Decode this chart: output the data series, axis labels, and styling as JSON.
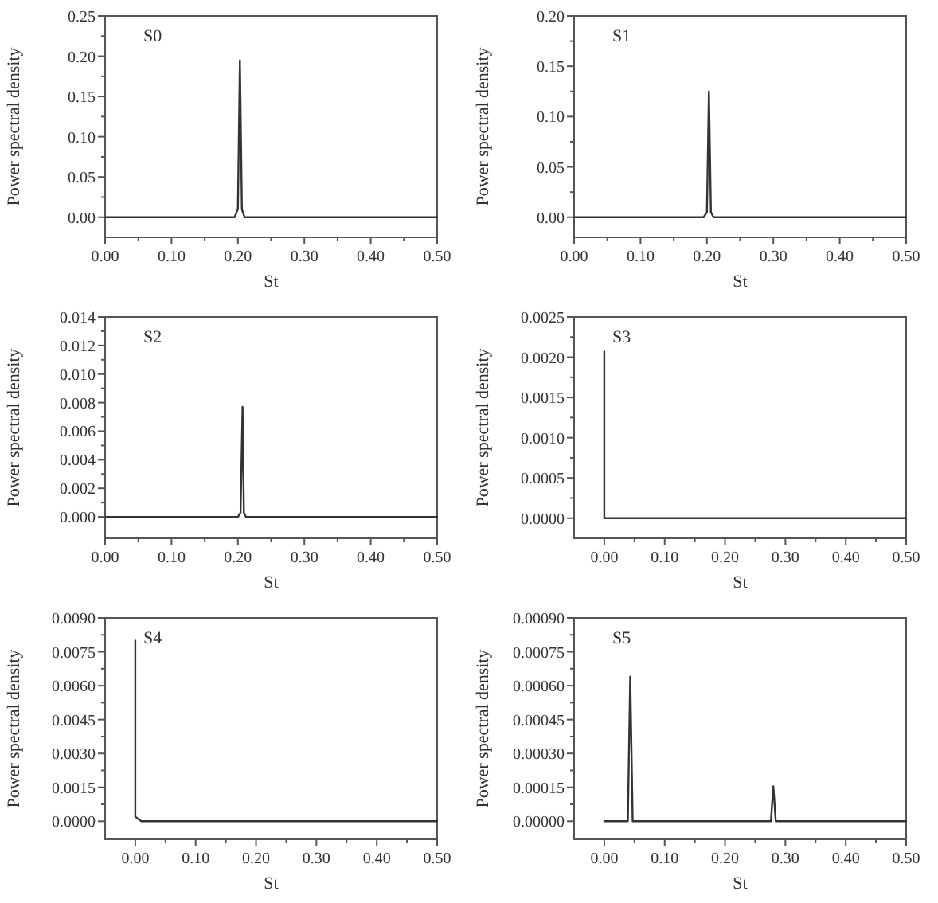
{
  "chart_data": [
    {
      "type": "line",
      "annotations": [
        "S0"
      ],
      "xlabel": "St",
      "ylabel": "Power spectral density",
      "xlim": [
        0,
        0.5
      ],
      "ylim": [
        -0.025,
        0.25
      ],
      "xticks": [
        {
          "value": 0,
          "label": "0.00"
        },
        {
          "value": 0.05,
          "label": null
        },
        {
          "value": 0.1,
          "label": "0.10"
        },
        {
          "value": 0.15,
          "label": null
        },
        {
          "value": 0.2,
          "label": "0.20"
        },
        {
          "value": 0.25,
          "label": null
        },
        {
          "value": 0.3,
          "label": "0.30"
        },
        {
          "value": 0.35,
          "label": null
        },
        {
          "value": 0.4,
          "label": "0.40"
        },
        {
          "value": 0.45,
          "label": null
        },
        {
          "value": 0.5,
          "label": "0.50"
        }
      ],
      "yticks": [
        {
          "value": 0,
          "label": "0.00"
        },
        {
          "value": 0.025,
          "label": null
        },
        {
          "value": 0.05,
          "label": "0.05"
        },
        {
          "value": 0.075,
          "label": null
        },
        {
          "value": 0.1,
          "label": "0.10"
        },
        {
          "value": 0.125,
          "label": null
        },
        {
          "value": 0.15,
          "label": "0.15"
        },
        {
          "value": 0.175,
          "label": null
        },
        {
          "value": 0.2,
          "label": "0.20"
        },
        {
          "value": 0.225,
          "label": null
        },
        {
          "value": 0.25,
          "label": "0.25"
        }
      ],
      "series": [
        {
          "color": "#333333",
          "x": [
            0,
            0.195,
            0.2,
            0.203,
            0.206,
            0.21,
            0.5
          ],
          "values": [
            0,
            0,
            0.01,
            0.195,
            0.01,
            0,
            0
          ]
        }
      ]
    },
    {
      "type": "line",
      "annotations": [
        "S1"
      ],
      "xlabel": "St",
      "ylabel": "Power spectral density",
      "xlim": [
        0,
        0.5
      ],
      "ylim": [
        -0.02,
        0.2
      ],
      "xticks": [
        {
          "value": 0,
          "label": "0.00"
        },
        {
          "value": 0.05,
          "label": null
        },
        {
          "value": 0.1,
          "label": "0.10"
        },
        {
          "value": 0.15,
          "label": null
        },
        {
          "value": 0.2,
          "label": "0.20"
        },
        {
          "value": 0.25,
          "label": null
        },
        {
          "value": 0.3,
          "label": "0.30"
        },
        {
          "value": 0.35,
          "label": null
        },
        {
          "value": 0.4,
          "label": "0.40"
        },
        {
          "value": 0.45,
          "label": null
        },
        {
          "value": 0.5,
          "label": "0.50"
        }
      ],
      "yticks": [
        {
          "value": 0,
          "label": "0.00"
        },
        {
          "value": 0.025,
          "label": null
        },
        {
          "value": 0.05,
          "label": "0.05"
        },
        {
          "value": 0.075,
          "label": null
        },
        {
          "value": 0.1,
          "label": "0.10"
        },
        {
          "value": 0.125,
          "label": null
        },
        {
          "value": 0.15,
          "label": "0.15"
        },
        {
          "value": 0.175,
          "label": null
        },
        {
          "value": 0.2,
          "label": "0.20"
        }
      ],
      "series": [
        {
          "color": "#333333",
          "x": [
            0,
            0.195,
            0.2,
            0.203,
            0.206,
            0.21,
            0.5
          ],
          "values": [
            0,
            0,
            0.005,
            0.125,
            0.005,
            0,
            0
          ]
        }
      ]
    },
    {
      "type": "line",
      "annotations": [
        "S2"
      ],
      "xlabel": "St",
      "ylabel": "Power spectral density",
      "xlim": [
        0,
        0.5
      ],
      "ylim": [
        -0.0015,
        0.014
      ],
      "xticks": [
        {
          "value": 0,
          "label": "0.00"
        },
        {
          "value": 0.05,
          "label": null
        },
        {
          "value": 0.1,
          "label": "0.10"
        },
        {
          "value": 0.15,
          "label": null
        },
        {
          "value": 0.2,
          "label": "0.20"
        },
        {
          "value": 0.25,
          "label": null
        },
        {
          "value": 0.3,
          "label": "0.30"
        },
        {
          "value": 0.35,
          "label": null
        },
        {
          "value": 0.4,
          "label": "0.40"
        },
        {
          "value": 0.45,
          "label": null
        },
        {
          "value": 0.5,
          "label": "0.50"
        }
      ],
      "yticks": [
        {
          "value": 0,
          "label": "0.000"
        },
        {
          "value": 0.001,
          "label": null
        },
        {
          "value": 0.002,
          "label": "0.002"
        },
        {
          "value": 0.003,
          "label": null
        },
        {
          "value": 0.004,
          "label": "0.004"
        },
        {
          "value": 0.005,
          "label": null
        },
        {
          "value": 0.006,
          "label": "0.006"
        },
        {
          "value": 0.007,
          "label": null
        },
        {
          "value": 0.008,
          "label": "0.008"
        },
        {
          "value": 0.009,
          "label": null
        },
        {
          "value": 0.01,
          "label": "0.010"
        },
        {
          "value": 0.011,
          "label": null
        },
        {
          "value": 0.012,
          "label": "0.012"
        },
        {
          "value": 0.013,
          "label": null
        },
        {
          "value": 0.014,
          "label": "0.014"
        }
      ],
      "series": [
        {
          "color": "#333333",
          "x": [
            0,
            0.2,
            0.204,
            0.207,
            0.209,
            0.212,
            0.5
          ],
          "values": [
            0,
            0,
            0.0003,
            0.0077,
            0.0003,
            0,
            0
          ]
        }
      ]
    },
    {
      "type": "line",
      "annotations": [
        "S3"
      ],
      "xlabel": "St",
      "ylabel": "Power spectral density",
      "xlim": [
        -0.05,
        0.5
      ],
      "ylim": [
        -0.00025,
        0.0025
      ],
      "xticks": [
        {
          "value": 0,
          "label": "0.00"
        },
        {
          "value": 0.05,
          "label": null
        },
        {
          "value": 0.1,
          "label": "0.10"
        },
        {
          "value": 0.15,
          "label": null
        },
        {
          "value": 0.2,
          "label": "0.20"
        },
        {
          "value": 0.25,
          "label": null
        },
        {
          "value": 0.3,
          "label": "0.30"
        },
        {
          "value": 0.35,
          "label": null
        },
        {
          "value": 0.4,
          "label": "0.40"
        },
        {
          "value": 0.45,
          "label": null
        },
        {
          "value": 0.5,
          "label": "0.50"
        }
      ],
      "yticks": [
        {
          "value": 0,
          "label": "0.0000"
        },
        {
          "value": 0.00025,
          "label": null
        },
        {
          "value": 0.0005,
          "label": "0.0005"
        },
        {
          "value": 0.00075,
          "label": null
        },
        {
          "value": 0.001,
          "label": "0.0010"
        },
        {
          "value": 0.00125,
          "label": null
        },
        {
          "value": 0.0015,
          "label": "0.0015"
        },
        {
          "value": 0.00175,
          "label": null
        },
        {
          "value": 0.002,
          "label": "0.0020"
        },
        {
          "value": 0.00225,
          "label": null
        },
        {
          "value": 0.0025,
          "label": "0.0025"
        }
      ],
      "series": [
        {
          "color": "#333333",
          "x": [
            0,
            0,
            0.005,
            0.5
          ],
          "values": [
            0.00207,
            0,
            0,
            0
          ]
        }
      ]
    },
    {
      "type": "line",
      "annotations": [
        "S4"
      ],
      "xlabel": "St",
      "ylabel": "Power spectral density",
      "xlim": [
        -0.05,
        0.5
      ],
      "ylim": [
        -0.0008,
        0.009
      ],
      "xticks": [
        {
          "value": 0,
          "label": "0.00"
        },
        {
          "value": 0.05,
          "label": null
        },
        {
          "value": 0.1,
          "label": "0.10"
        },
        {
          "value": 0.15,
          "label": null
        },
        {
          "value": 0.2,
          "label": "0.20"
        },
        {
          "value": 0.25,
          "label": null
        },
        {
          "value": 0.3,
          "label": "0.30"
        },
        {
          "value": 0.35,
          "label": null
        },
        {
          "value": 0.4,
          "label": "0.40"
        },
        {
          "value": 0.45,
          "label": null
        },
        {
          "value": 0.5,
          "label": "0.50"
        }
      ],
      "yticks": [
        {
          "value": 0,
          "label": "0.0000"
        },
        {
          "value": 0.00075,
          "label": null
        },
        {
          "value": 0.0015,
          "label": "0.0015"
        },
        {
          "value": 0.00225,
          "label": null
        },
        {
          "value": 0.003,
          "label": "0.0030"
        },
        {
          "value": 0.00375,
          "label": null
        },
        {
          "value": 0.0045,
          "label": "0.0045"
        },
        {
          "value": 0.00525,
          "label": null
        },
        {
          "value": 0.006,
          "label": "0.0060"
        },
        {
          "value": 0.00675,
          "label": null
        },
        {
          "value": 0.0075,
          "label": "0.0075"
        },
        {
          "value": 0.00825,
          "label": null
        },
        {
          "value": 0.009,
          "label": "0.0090"
        }
      ],
      "series": [
        {
          "color": "#333333",
          "x": [
            0,
            0,
            0.01,
            0.5
          ],
          "values": [
            0.008,
            0.0002,
            0,
            0
          ]
        }
      ]
    },
    {
      "type": "line",
      "annotations": [
        "S5"
      ],
      "xlabel": "St",
      "ylabel": "Power spectral density",
      "xlim": [
        -0.05,
        0.5
      ],
      "ylim": [
        -8e-05,
        0.0009
      ],
      "xticks": [
        {
          "value": 0,
          "label": "0.00"
        },
        {
          "value": 0.05,
          "label": null
        },
        {
          "value": 0.1,
          "label": "0.10"
        },
        {
          "value": 0.15,
          "label": null
        },
        {
          "value": 0.2,
          "label": "0.20"
        },
        {
          "value": 0.25,
          "label": null
        },
        {
          "value": 0.3,
          "label": "0.30"
        },
        {
          "value": 0.35,
          "label": null
        },
        {
          "value": 0.4,
          "label": "0.40"
        },
        {
          "value": 0.45,
          "label": null
        },
        {
          "value": 0.5,
          "label": "0.50"
        }
      ],
      "yticks": [
        {
          "value": 0,
          "label": "0.00000"
        },
        {
          "value": 7.5e-05,
          "label": null
        },
        {
          "value": 0.00015,
          "label": "0.00015"
        },
        {
          "value": 0.000225,
          "label": null
        },
        {
          "value": 0.0003,
          "label": "0.00030"
        },
        {
          "value": 0.000375,
          "label": null
        },
        {
          "value": 0.00045,
          "label": "0.00045"
        },
        {
          "value": 0.000525,
          "label": null
        },
        {
          "value": 0.0006,
          "label": "0.00060"
        },
        {
          "value": 0.000675,
          "label": null
        },
        {
          "value": 0.00075,
          "label": "0.00075"
        },
        {
          "value": 0.000825,
          "label": null
        },
        {
          "value": 0.0009,
          "label": "0.00090"
        }
      ],
      "series": [
        {
          "color": "#333333",
          "x": [
            0,
            0.039,
            0.043,
            0.047,
            0.276,
            0.28,
            0.284,
            0.5
          ],
          "values": [
            0,
            0,
            0.00064,
            0,
            0,
            0.000155,
            0,
            0
          ]
        }
      ]
    }
  ]
}
